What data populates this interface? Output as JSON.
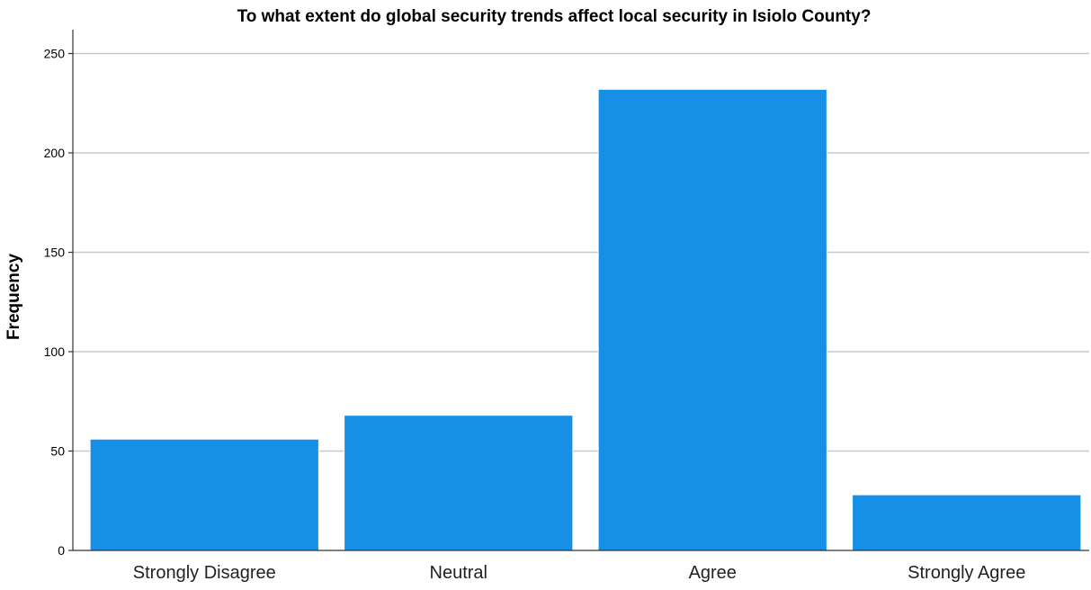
{
  "chart_data": {
    "type": "bar",
    "title": "To what extent do global security trends affect local security in Isiolo County?",
    "xlabel": "",
    "ylabel": "Frequency",
    "categories": [
      "Strongly Disagree",
      "Neutral",
      "Agree",
      "Strongly Agree"
    ],
    "values": [
      56,
      68,
      232,
      28
    ],
    "ylim": [
      0,
      262
    ],
    "yticks": [
      0,
      50,
      100,
      150,
      200,
      250
    ],
    "grid": true,
    "bar_color": "#1590e6"
  }
}
